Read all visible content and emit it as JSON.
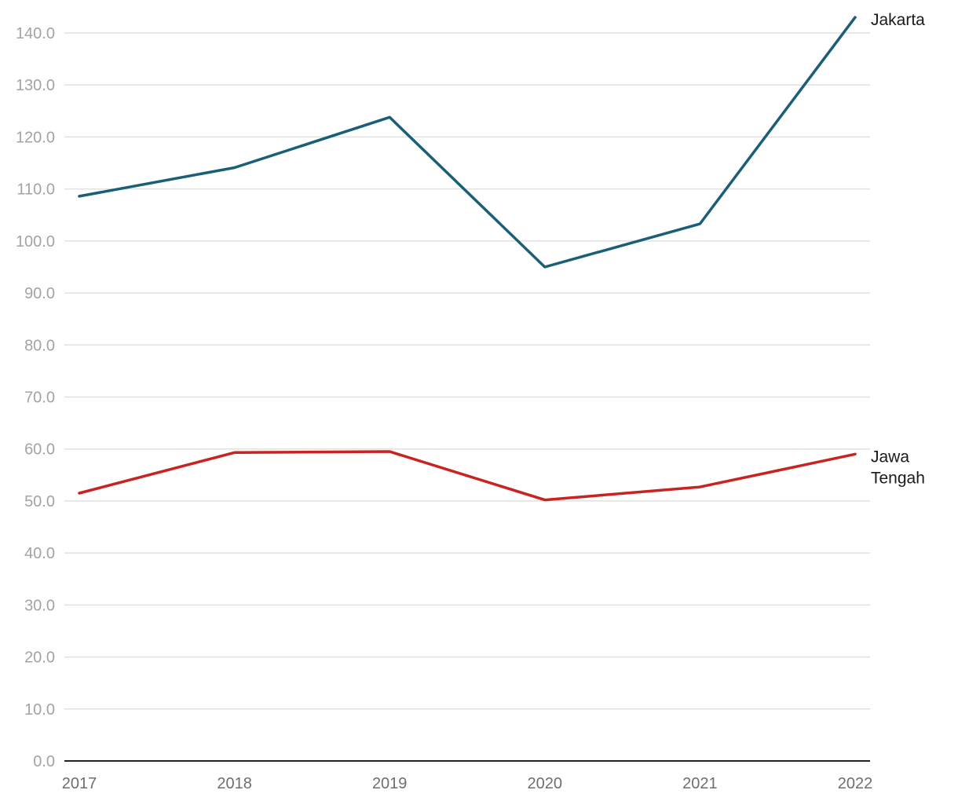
{
  "chart_data": {
    "type": "line",
    "title": "",
    "xlabel": "",
    "ylabel": "",
    "categories": [
      "2017",
      "2018",
      "2019",
      "2020",
      "2021",
      "2022"
    ],
    "ylim": [
      0,
      140
    ],
    "yticks": [
      "0.0",
      "10.0",
      "20.0",
      "30.0",
      "40.0",
      "50.0",
      "60.0",
      "70.0",
      "80.0",
      "90.0",
      "100.0",
      "110.0",
      "120.0",
      "130.0",
      "140.0"
    ],
    "grid": true,
    "legend": "end-of-line labels",
    "series": [
      {
        "name": "Jakarta",
        "label_lines": [
          "Jakarta"
        ],
        "color": "#1a5e77",
        "values": [
          108.6,
          114.1,
          123.8,
          95.0,
          103.3,
          143.0
        ]
      },
      {
        "name": "Jawa Tengah",
        "label_lines": [
          "Jawa",
          "Tengah"
        ],
        "color": "#c82320",
        "values": [
          51.5,
          59.3,
          59.5,
          50.2,
          52.7,
          59.0
        ]
      }
    ]
  }
}
